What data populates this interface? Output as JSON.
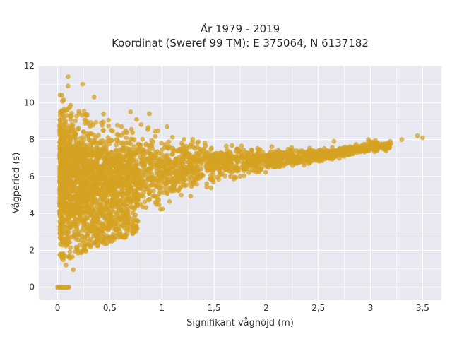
{
  "chart_data": {
    "type": "scatter",
    "title": "År 1979 - 2019",
    "subtitle": "Koordinat (Sweref 99 TM): E 375064, N 6137182",
    "xlabel": "Signifikant våghöjd (m)",
    "ylabel": "Vågperiod (s)",
    "xlim": [
      -0.18,
      3.68
    ],
    "ylim": [
      -0.7,
      12.0
    ],
    "x_ticks": [
      0,
      0.5,
      1,
      1.5,
      2,
      2.5,
      3,
      3.5
    ],
    "x_tick_labels": [
      "0",
      "0,5",
      "1",
      "1,5",
      "2",
      "2,5",
      "3",
      "3,5"
    ],
    "y_ticks": [
      0,
      2,
      4,
      6,
      8,
      10,
      12
    ],
    "y_tick_labels": [
      "0",
      "2",
      "4",
      "6",
      "8",
      "10",
      "12"
    ],
    "grid": true,
    "legend": "none",
    "colors": {
      "marker": "#d4a221",
      "plot_background": "#e8e8f0",
      "grid": "#ffffff"
    },
    "series": [
      {
        "envelope": [
          {
            "x": 0.02,
            "ymin": 1.3,
            "ymax": 11.2
          },
          {
            "x": 0.1,
            "ymin": 1.5,
            "ymax": 11.0
          },
          {
            "x": 0.2,
            "ymin": 1.8,
            "ymax": 10.5
          },
          {
            "x": 0.3,
            "ymin": 2.0,
            "ymax": 10.2
          },
          {
            "x": 0.4,
            "ymin": 2.2,
            "ymax": 9.8
          },
          {
            "x": 0.5,
            "ymin": 2.4,
            "ymax": 9.6
          },
          {
            "x": 0.6,
            "ymin": 2.6,
            "ymax": 9.6
          },
          {
            "x": 0.7,
            "ymin": 2.8,
            "ymax": 9.5
          },
          {
            "x": 0.8,
            "ymin": 3.2,
            "ymax": 9.3
          },
          {
            "x": 0.9,
            "ymin": 3.6,
            "ymax": 8.8
          },
          {
            "x": 1.0,
            "ymin": 4.0,
            "ymax": 8.6
          },
          {
            "x": 1.2,
            "ymin": 4.6,
            "ymax": 8.4
          },
          {
            "x": 1.4,
            "ymin": 5.1,
            "ymax": 8.2
          },
          {
            "x": 1.6,
            "ymin": 5.5,
            "ymax": 8.0
          },
          {
            "x": 1.8,
            "ymin": 5.8,
            "ymax": 7.8
          },
          {
            "x": 2.0,
            "ymin": 6.1,
            "ymax": 7.8
          },
          {
            "x": 2.2,
            "ymin": 6.4,
            "ymax": 7.7
          },
          {
            "x": 2.4,
            "ymin": 6.6,
            "ymax": 7.6
          },
          {
            "x": 2.6,
            "ymin": 6.8,
            "ymax": 7.6
          },
          {
            "x": 2.8,
            "ymin": 7.0,
            "ymax": 7.8
          },
          {
            "x": 3.0,
            "ymin": 7.2,
            "ymax": 8.0
          },
          {
            "x": 3.2,
            "ymin": 7.4,
            "ymax": 8.0
          }
        ],
        "outliers": [
          {
            "x": 0.1,
            "y": 11.4
          },
          {
            "x": 0.04,
            "y": 10.4
          },
          {
            "x": 0.1,
            "y": 10.9
          },
          {
            "x": 0.24,
            "y": 11.0
          },
          {
            "x": 0.35,
            "y": 10.3
          },
          {
            "x": 0.7,
            "y": 9.5
          },
          {
            "x": 0.88,
            "y": 9.4
          },
          {
            "x": 1.05,
            "y": 8.7
          },
          {
            "x": 2.65,
            "y": 7.9
          },
          {
            "x": 2.98,
            "y": 8.0
          },
          {
            "x": 3.05,
            "y": 7.6
          },
          {
            "x": 3.15,
            "y": 7.4
          },
          {
            "x": 3.3,
            "y": 8.0
          },
          {
            "x": 3.45,
            "y": 8.2
          },
          {
            "x": 3.5,
            "y": 8.1
          },
          {
            "x": 0.15,
            "y": 0.95
          },
          {
            "x": 0.08,
            "y": 1.2
          }
        ],
        "zero_period_range": {
          "x": [
            0.0,
            0.11
          ],
          "y": 0
        }
      }
    ]
  }
}
